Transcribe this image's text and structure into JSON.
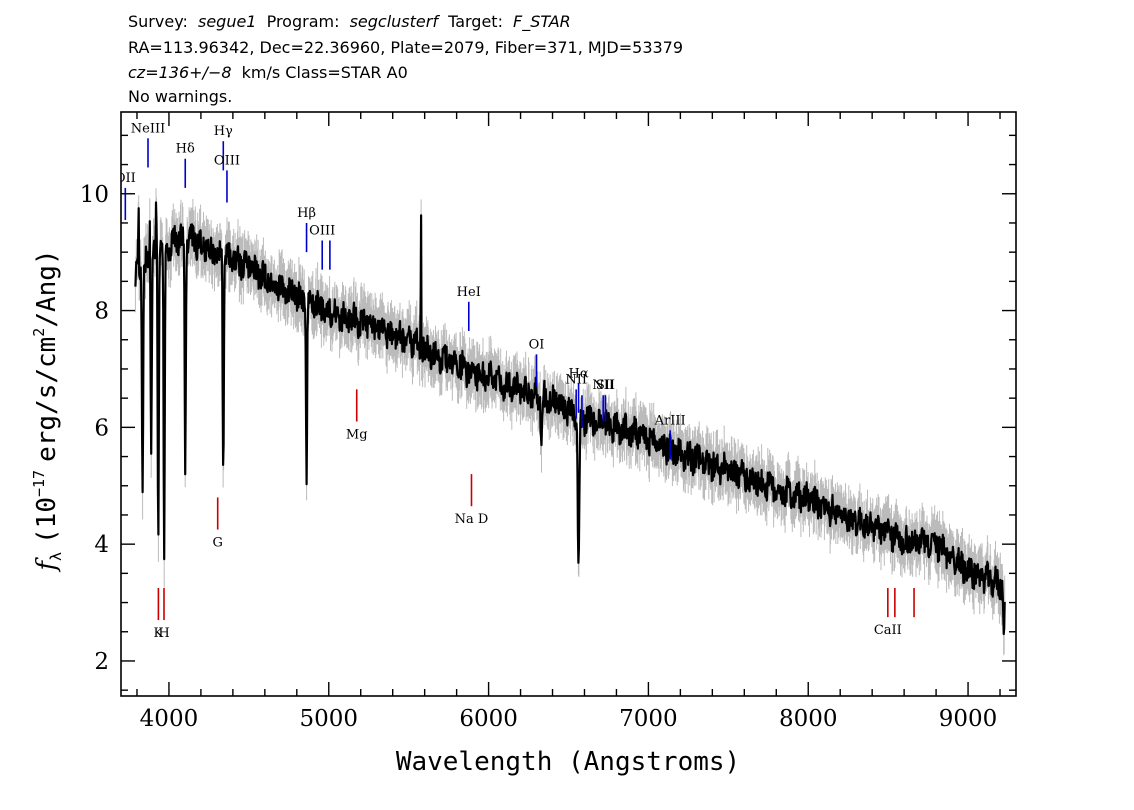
{
  "header": {
    "line1": {
      "survey_label": "Survey:",
      "survey": "segue1",
      "program_label": "Program:",
      "program": "segclusterf",
      "target_label": "Target:",
      "target": "F_STAR"
    },
    "line2": "RA=113.96342, Dec=22.36960, Plate=2079, Fiber=371, MJD=53379",
    "line3": {
      "cz": "cz=136+/−8",
      "rest": "km/s Class=STAR A0"
    },
    "line4": "No warnings."
  },
  "chart_data": {
    "type": "line",
    "xlabel": "Wavelength (Angstroms)",
    "ylabel": {
      "f": "f",
      "sub": "λ",
      "open": "(10",
      "exp": "−17",
      "units_a": "erg/s/cm",
      "units_sup": "2",
      "units_b": "/Ang)"
    },
    "xlim": [
      3700,
      9300
    ],
    "ylim": [
      1.4,
      11.4
    ],
    "xticks": [
      4000,
      5000,
      6000,
      7000,
      8000,
      9000
    ],
    "yticks": [
      2,
      4,
      6,
      8,
      10
    ],
    "grid": false,
    "series": [
      {
        "role": "flux",
        "color": "#000000",
        "continuum": [
          [
            3800,
            8.6
          ],
          [
            3900,
            9.0
          ],
          [
            4000,
            9.1
          ],
          [
            4100,
            9.3
          ],
          [
            4200,
            9.1
          ],
          [
            4300,
            8.95
          ],
          [
            4400,
            8.9
          ],
          [
            4500,
            8.75
          ],
          [
            4600,
            8.55
          ],
          [
            4700,
            8.4
          ],
          [
            4800,
            8.25
          ],
          [
            4900,
            8.15
          ],
          [
            5000,
            8.0
          ],
          [
            5200,
            7.8
          ],
          [
            5400,
            7.6
          ],
          [
            5600,
            7.35
          ],
          [
            5800,
            7.05
          ],
          [
            6000,
            6.85
          ],
          [
            6200,
            6.65
          ],
          [
            6400,
            6.45
          ],
          [
            6600,
            6.15
          ],
          [
            6800,
            6.0
          ],
          [
            7000,
            5.8
          ],
          [
            7200,
            5.55
          ],
          [
            7400,
            5.35
          ],
          [
            7600,
            5.15
          ],
          [
            7800,
            4.95
          ],
          [
            8000,
            4.75
          ],
          [
            8200,
            4.5
          ],
          [
            8400,
            4.3
          ],
          [
            8600,
            4.05
          ],
          [
            8800,
            4.0
          ],
          [
            9000,
            3.55
          ],
          [
            9200,
            3.3
          ]
        ],
        "absorption": [
          [
            3835,
            5.0
          ],
          [
            3889,
            5.8
          ],
          [
            3933,
            4.1
          ],
          [
            3970,
            3.5
          ],
          [
            4102,
            5.1
          ],
          [
            4340,
            5.2
          ],
          [
            4861,
            5.05
          ],
          [
            6563,
            3.75
          ],
          [
            6330,
            5.55
          ],
          [
            9225,
            2.5
          ]
        ],
        "spikes": [
          [
            5577,
            10.0
          ],
          [
            3810,
            9.8
          ],
          [
            3880,
            9.9
          ],
          [
            3920,
            9.9
          ]
        ]
      },
      {
        "role": "error",
        "color": "#bbbbbb",
        "band": 0.35
      }
    ],
    "emission_lines": [
      {
        "label": "NeIII",
        "wavelength": 3869,
        "y_top": 10.95,
        "y_bottom": 10.45
      },
      {
        "label": "Hδ",
        "wavelength": 4102,
        "y_top": 10.6,
        "y_bottom": 10.1
      },
      {
        "label": "Hγ",
        "wavelength": 4340,
        "y_top": 10.9,
        "y_bottom": 10.4
      },
      {
        "label": "OIII",
        "wavelength": 4363,
        "y_top": 10.4,
        "y_bottom": 9.85
      },
      {
        "label": "OII",
        "wavelength": 3727,
        "y_top": 10.1,
        "y_bottom": 9.55
      },
      {
        "label": "Hβ",
        "wavelength": 4861,
        "y_top": 9.5,
        "y_bottom": 9.0
      },
      {
        "label": "OIII",
        "wavelength": 4959,
        "y_top": 9.2,
        "y_bottom": 8.7
      },
      {
        "label": "",
        "wavelength": 5007,
        "y_top": 9.2,
        "y_bottom": 8.7
      },
      {
        "label": "HeI",
        "wavelength": 5876,
        "y_top": 8.15,
        "y_bottom": 7.65
      },
      {
        "label": "OI",
        "wavelength": 6300,
        "y_top": 7.25,
        "y_bottom": 6.7
      },
      {
        "label": "NII",
        "wavelength": 6548,
        "y_top": 6.65,
        "y_bottom": 6.15
      },
      {
        "label": "Hα",
        "wavelength": 6563,
        "y_top": 6.75,
        "y_bottom": 6.25
      },
      {
        "label": "",
        "wavelength": 6584,
        "y_top": 6.55,
        "y_bottom": 6.0
      },
      {
        "label": "NII",
        "wavelength": 6717,
        "y_top": 6.55,
        "y_bottom": 6.1
      },
      {
        "label": "SII",
        "wavelength": 6731,
        "y_top": 6.55,
        "y_bottom": 6.1
      },
      {
        "label": "ArIII",
        "wavelength": 7136,
        "y_top": 5.95,
        "y_bottom": 5.45
      }
    ],
    "absorption_lines": [
      {
        "label": "K",
        "wavelength": 3934,
        "y_top": 3.25,
        "y_bottom": 2.7
      },
      {
        "label": "H",
        "wavelength": 3969,
        "y_top": 3.25,
        "y_bottom": 2.7
      },
      {
        "label": "G",
        "wavelength": 4305,
        "y_top": 4.8,
        "y_bottom": 4.25
      },
      {
        "label": "Mg",
        "wavelength": 5175,
        "y_top": 6.65,
        "y_bottom": 6.1
      },
      {
        "label": "Na D",
        "wavelength": 5893,
        "y_top": 5.2,
        "y_bottom": 4.65
      },
      {
        "label": "CaII",
        "wavelength": 8498,
        "y_top": 3.25,
        "y_bottom": 2.75
      },
      {
        "label": "",
        "wavelength": 8542,
        "y_top": 3.25,
        "y_bottom": 2.75
      },
      {
        "label": "",
        "wavelength": 8662,
        "y_top": 3.25,
        "y_bottom": 2.75
      }
    ],
    "colors": {
      "flux": "#000000",
      "error": "#bbbbbb",
      "emission_marker": "#0000cc",
      "absorption_marker": "#cc0000",
      "axes": "#000000"
    }
  }
}
